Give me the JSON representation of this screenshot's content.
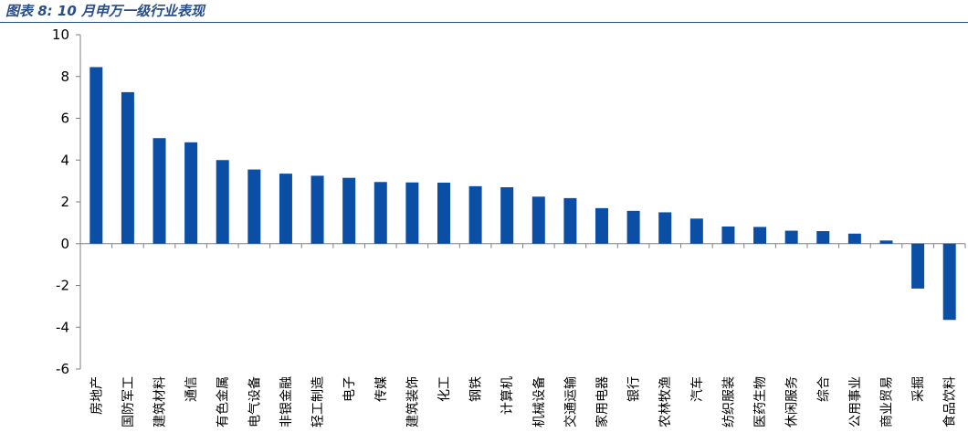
{
  "caption": "图表 8: 10 月申万一级行业表现",
  "colors": {
    "bar": "#0a4ea6",
    "axis": "#7f7f7f",
    "caption": "#2a4e8a"
  },
  "chart_data": {
    "type": "bar",
    "title": "",
    "xlabel": "",
    "ylabel": "",
    "ylim": [
      -6,
      10
    ],
    "yticks": [
      10,
      8,
      6,
      4,
      2,
      0,
      -2,
      -4,
      -6
    ],
    "grid": false,
    "legend": "none",
    "categories": [
      "房地产",
      "国防军工",
      "建筑材料",
      "通信",
      "有色金属",
      "电气设备",
      "非银金融",
      "轻工制造",
      "电子",
      "传媒",
      "建筑装饰",
      "化工",
      "钢铁",
      "计算机",
      "机械设备",
      "交通运输",
      "家用电器",
      "银行",
      "农林牧渔",
      "汽车",
      "纺织服装",
      "医药生物",
      "休闲服务",
      "综合",
      "公用事业",
      "商业贸易",
      "采掘",
      "食品饮料"
    ],
    "values": [
      8.45,
      7.25,
      5.05,
      4.85,
      4.0,
      3.55,
      3.35,
      3.25,
      3.15,
      2.95,
      2.93,
      2.92,
      2.75,
      2.7,
      2.25,
      2.18,
      1.7,
      1.57,
      1.5,
      1.2,
      0.82,
      0.8,
      0.62,
      0.6,
      0.48,
      0.15,
      -2.15,
      -3.65
    ]
  }
}
